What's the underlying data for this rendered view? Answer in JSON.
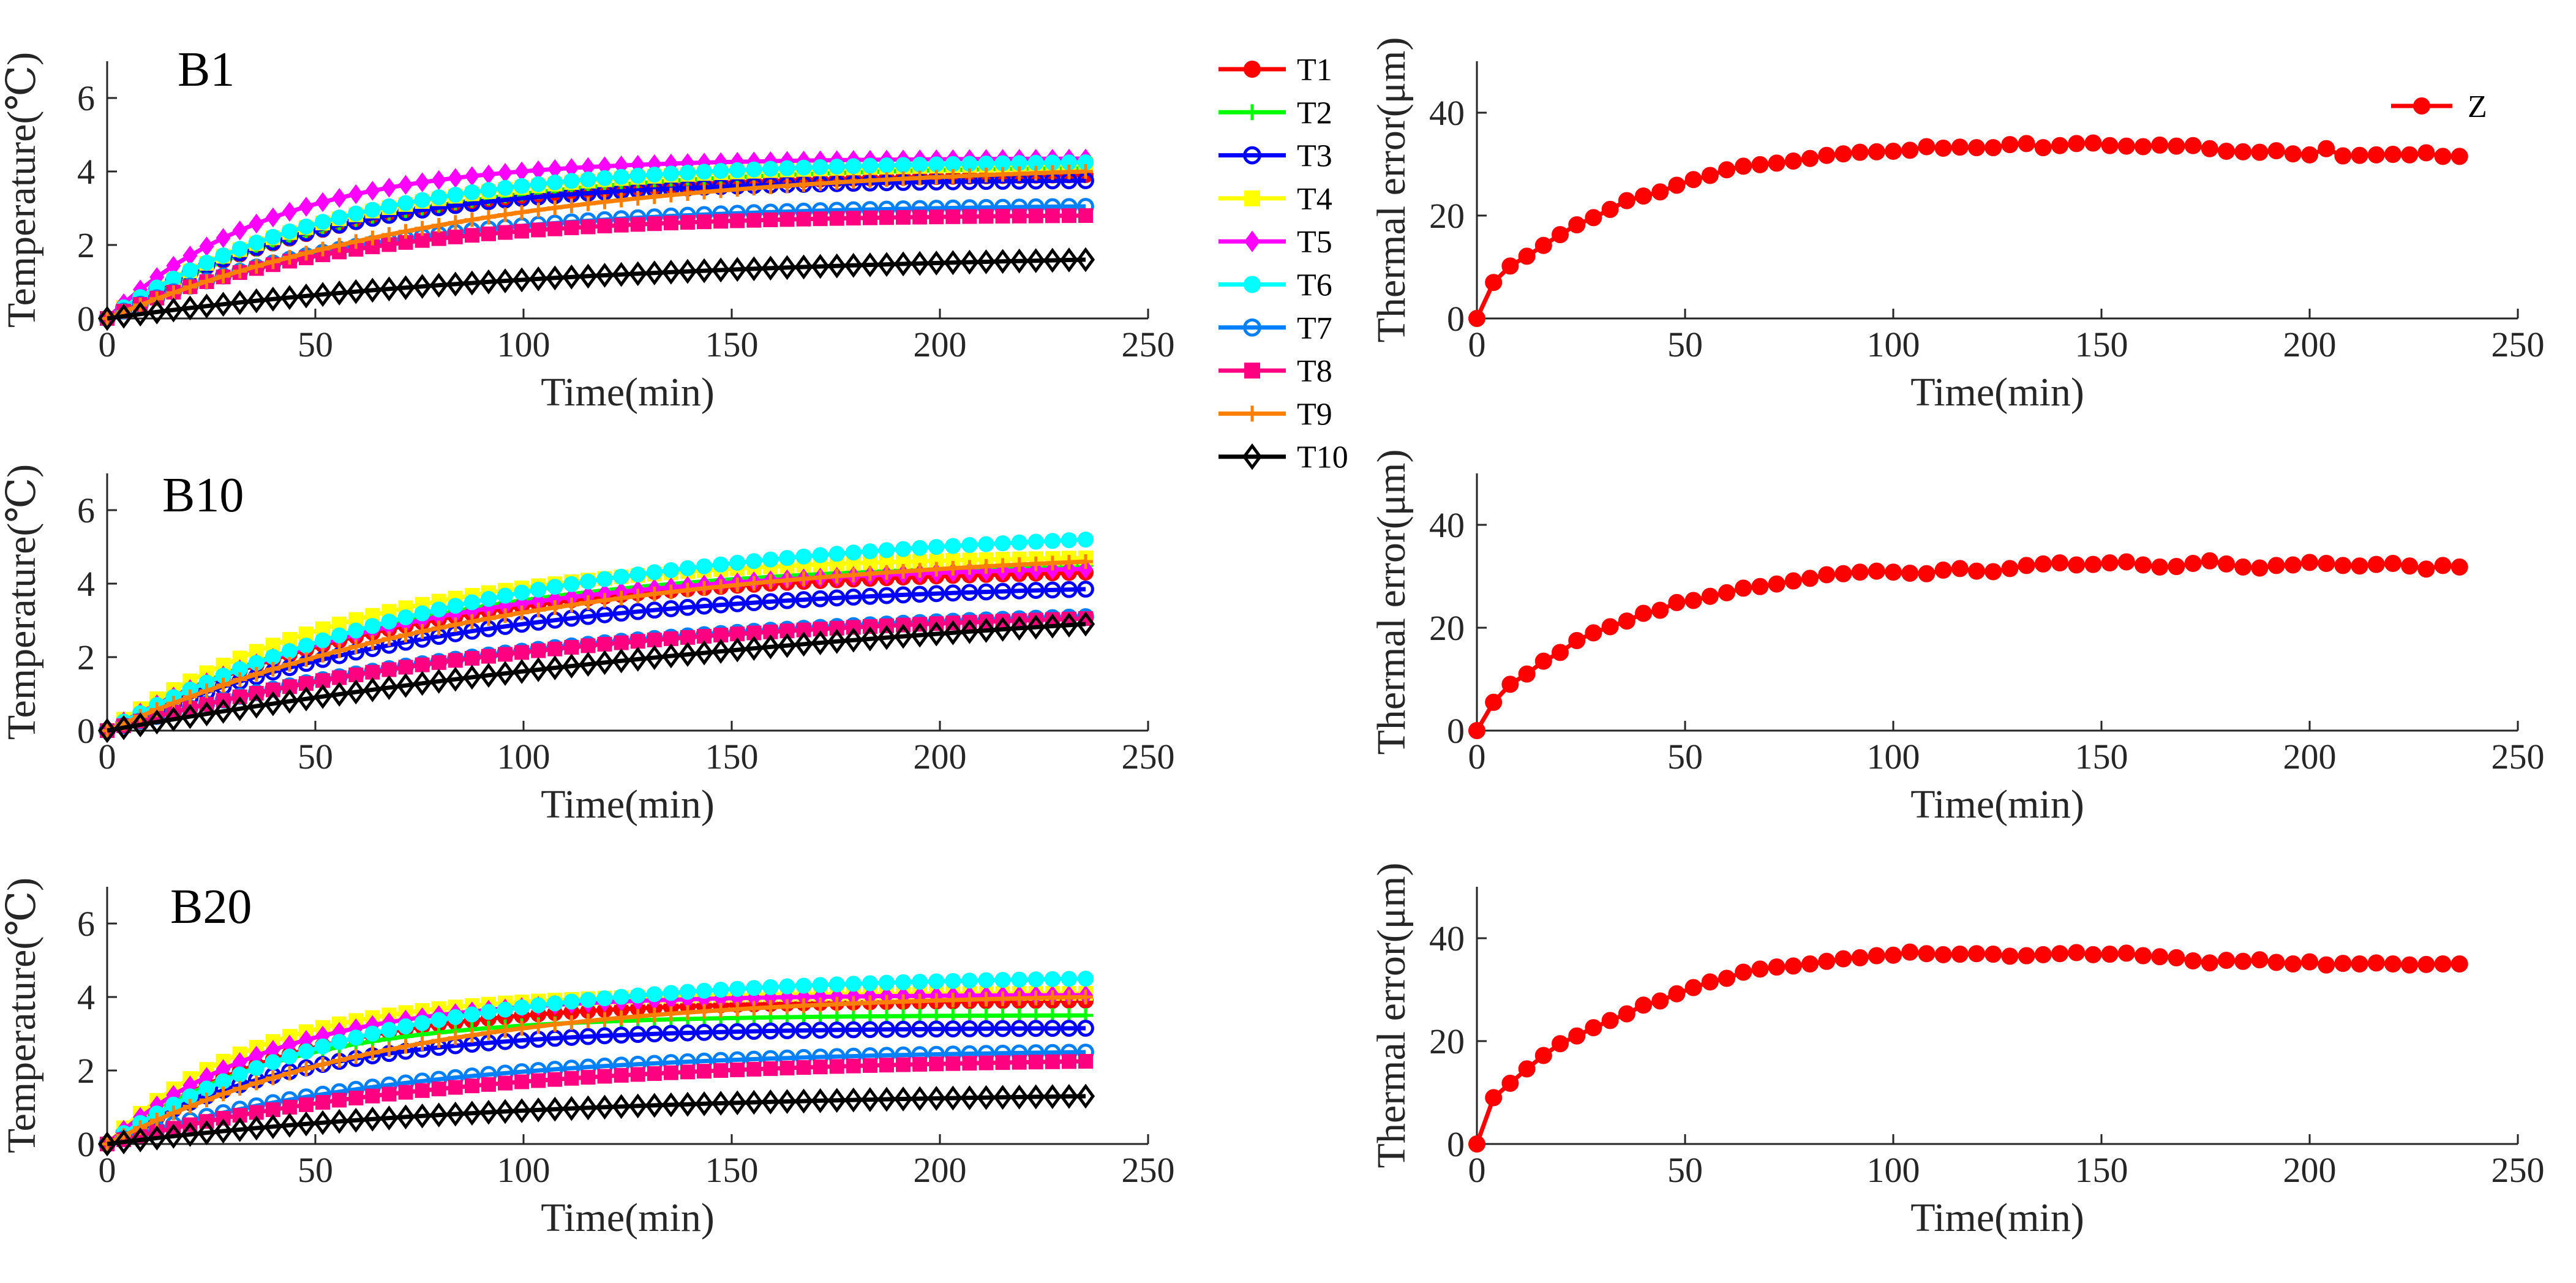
{
  "legend_temperature": {
    "entries": [
      {
        "name": "T1",
        "color": "#ff0000",
        "marker": "circle-filled"
      },
      {
        "name": "T2",
        "color": "#00ff00",
        "marker": "plus"
      },
      {
        "name": "T3",
        "color": "#0000ff",
        "marker": "circle-open"
      },
      {
        "name": "T4",
        "color": "#ffff00",
        "marker": "square-filled"
      },
      {
        "name": "T5",
        "color": "#ff00ff",
        "marker": "diamond-filled"
      },
      {
        "name": "T6",
        "color": "#00ffff",
        "marker": "circle-filled"
      },
      {
        "name": "T7",
        "color": "#0080ff",
        "marker": "circle-open"
      },
      {
        "name": "T8",
        "color": "#ff0080",
        "marker": "square-filled"
      },
      {
        "name": "T9",
        "color": "#ff8000",
        "marker": "plus"
      },
      {
        "name": "T10",
        "color": "#000000",
        "marker": "diamond-open"
      }
    ]
  },
  "legend_error": {
    "entries": [
      {
        "name": "Z",
        "color": "#ff0000",
        "marker": "circle-filled"
      }
    ]
  },
  "chart_data": [
    {
      "id": "B1-temp",
      "type": "line",
      "title": "B1",
      "xlabel": "Time(min)",
      "ylabel": "Temperature(℃)",
      "xlim": [
        0,
        250
      ],
      "ylim": [
        0,
        7
      ],
      "xticks": [
        0,
        50,
        100,
        150,
        200,
        250
      ],
      "yticks": [
        0,
        2,
        4,
        6
      ],
      "x_range": [
        0,
        235
      ],
      "n_points": 60,
      "series": [
        {
          "name": "T1",
          "final": 3.9,
          "tau": 55
        },
        {
          "name": "T2",
          "final": 4.1,
          "tau": 60
        },
        {
          "name": "T3",
          "final": 3.75,
          "tau": 50
        },
        {
          "name": "T4",
          "final": 4.2,
          "tau": 55
        },
        {
          "name": "T5",
          "final": 4.35,
          "tau": 40
        },
        {
          "name": "T6",
          "final": 4.25,
          "tau": 55
        },
        {
          "name": "T7",
          "final": 3.05,
          "tau": 60
        },
        {
          "name": "T8",
          "final": 2.8,
          "tau": 55
        },
        {
          "name": "T9",
          "final": 4.0,
          "tau": 90
        },
        {
          "name": "T10",
          "final": 1.6,
          "tau": 120
        }
      ]
    },
    {
      "id": "B10-temp",
      "type": "line",
      "title": "B10",
      "xlabel": "Time(min)",
      "ylabel": "Temperature(℃)",
      "xlim": [
        0,
        250
      ],
      "ylim": [
        0,
        7
      ],
      "xticks": [
        0,
        50,
        100,
        150,
        200,
        250
      ],
      "yticks": [
        0,
        2,
        4,
        6
      ],
      "x_range": [
        0,
        235
      ],
      "n_points": 60,
      "series": [
        {
          "name": "T1",
          "final": 4.3,
          "tau": 70
        },
        {
          "name": "T2",
          "final": 4.5,
          "tau": 70
        },
        {
          "name": "T3",
          "final": 3.85,
          "tau": 80
        },
        {
          "name": "T4",
          "final": 4.7,
          "tau": 60
        },
        {
          "name": "T5",
          "final": 4.4,
          "tau": 70
        },
        {
          "name": "T6",
          "final": 5.2,
          "tau": 90
        },
        {
          "name": "T7",
          "final": 3.1,
          "tau": 100
        },
        {
          "name": "T8",
          "final": 3.05,
          "tau": 100
        },
        {
          "name": "T9",
          "final": 4.6,
          "tau": 100
        },
        {
          "name": "T10",
          "final": 2.9,
          "tau": 220
        }
      ]
    },
    {
      "id": "B20-temp",
      "type": "line",
      "title": "B20",
      "xlabel": "Time(min)",
      "ylabel": "Temperature(℃)",
      "xlim": [
        0,
        250
      ],
      "ylim": [
        0,
        7
      ],
      "xticks": [
        0,
        50,
        100,
        150,
        200,
        250
      ],
      "yticks": [
        0,
        2,
        4,
        6
      ],
      "x_range": [
        0,
        235
      ],
      "n_points": 60,
      "series": [
        {
          "name": "T1",
          "final": 3.9,
          "tau": 45
        },
        {
          "name": "T2",
          "final": 3.5,
          "tau": 40
        },
        {
          "name": "T3",
          "final": 3.15,
          "tau": 45
        },
        {
          "name": "T4",
          "final": 4.1,
          "tau": 35
        },
        {
          "name": "T5",
          "final": 4.05,
          "tau": 40
        },
        {
          "name": "T6",
          "final": 4.5,
          "tau": 60
        },
        {
          "name": "T7",
          "final": 2.5,
          "tau": 70
        },
        {
          "name": "T8",
          "final": 2.25,
          "tau": 80
        },
        {
          "name": "T9",
          "final": 4.0,
          "tau": 70
        },
        {
          "name": "T10",
          "final": 1.3,
          "tau": 100
        }
      ]
    },
    {
      "id": "B1-error",
      "type": "line",
      "xlabel": "Time(min)",
      "ylabel": "Thermal error(μm)",
      "xlim": [
        0,
        250
      ],
      "ylim": [
        0,
        50
      ],
      "xticks": [
        0,
        50,
        100,
        150,
        200,
        250
      ],
      "yticks": [
        0,
        20,
        40
      ],
      "series": [
        {
          "name": "Z",
          "x": [
            0,
            4,
            8,
            12,
            16,
            20,
            24,
            28,
            32,
            36,
            40,
            44,
            48,
            52,
            56,
            60,
            64,
            68,
            72,
            76,
            80,
            84,
            88,
            92,
            96,
            100,
            104,
            108,
            112,
            116,
            120,
            124,
            128,
            132,
            136,
            140,
            144,
            148,
            152,
            156,
            160,
            164,
            168,
            172,
            176,
            180,
            184,
            188,
            192,
            196,
            200,
            204,
            208,
            212,
            216,
            220,
            224,
            228,
            232,
            236
          ],
          "y": [
            0,
            7.0,
            10.2,
            12.1,
            14.2,
            16.3,
            18.2,
            19.6,
            21.2,
            22.9,
            23.8,
            24.6,
            25.9,
            27.0,
            27.8,
            28.9,
            29.6,
            29.9,
            30.2,
            30.6,
            31.1,
            31.7,
            32.0,
            32.3,
            32.4,
            32.5,
            32.7,
            33.4,
            33.1,
            33.3,
            33.2,
            33.2,
            33.8,
            34.0,
            33.2,
            33.6,
            34.0,
            34.1,
            33.6,
            33.5,
            33.4,
            33.7,
            33.5,
            33.6,
            33.0,
            32.5,
            32.4,
            32.3,
            32.6,
            32.0,
            31.8,
            33.0,
            31.6,
            31.7,
            31.8,
            31.9,
            31.8,
            32.2,
            31.5,
            31.5
          ]
        }
      ]
    },
    {
      "id": "B10-error",
      "type": "line",
      "xlabel": "Time(min)",
      "ylabel": "Thermal error(μm)",
      "xlim": [
        0,
        250
      ],
      "ylim": [
        0,
        50
      ],
      "xticks": [
        0,
        50,
        100,
        150,
        200,
        250
      ],
      "yticks": [
        0,
        20,
        40
      ],
      "series": [
        {
          "name": "Z",
          "x": [
            0,
            4,
            8,
            12,
            16,
            20,
            24,
            28,
            32,
            36,
            40,
            44,
            48,
            52,
            56,
            60,
            64,
            68,
            72,
            76,
            80,
            84,
            88,
            92,
            96,
            100,
            104,
            108,
            112,
            116,
            120,
            124,
            128,
            132,
            136,
            140,
            144,
            148,
            152,
            156,
            160,
            164,
            168,
            172,
            176,
            180,
            184,
            188,
            192,
            196,
            200,
            204,
            208,
            212,
            216,
            220,
            224,
            228,
            232,
            236
          ],
          "y": [
            0,
            5.5,
            9.0,
            11.0,
            13.5,
            15.2,
            17.5,
            19.0,
            20.2,
            21.3,
            22.8,
            23.4,
            24.9,
            25.3,
            26.1,
            26.8,
            27.7,
            28.0,
            28.5,
            29.1,
            29.6,
            30.3,
            30.5,
            30.8,
            31.0,
            30.8,
            30.6,
            30.5,
            31.2,
            31.5,
            31.0,
            30.9,
            31.5,
            32.1,
            32.4,
            32.6,
            32.2,
            32.3,
            32.6,
            32.8,
            32.2,
            31.8,
            31.9,
            32.5,
            33.0,
            32.4,
            31.8,
            31.6,
            32.1,
            32.2,
            32.7,
            32.5,
            32.1,
            32.0,
            32.3,
            32.5,
            32.0,
            31.4,
            32.1,
            31.8
          ]
        }
      ]
    },
    {
      "id": "B20-error",
      "type": "line",
      "xlabel": "Time(min)",
      "ylabel": "Thermal error(μm)",
      "xlim": [
        0,
        250
      ],
      "ylim": [
        0,
        50
      ],
      "xticks": [
        0,
        50,
        100,
        150,
        200,
        250
      ],
      "yticks": [
        0,
        20,
        40
      ],
      "series": [
        {
          "name": "Z",
          "x": [
            0,
            4,
            8,
            12,
            16,
            20,
            24,
            28,
            32,
            36,
            40,
            44,
            48,
            52,
            56,
            60,
            64,
            68,
            72,
            76,
            80,
            84,
            88,
            92,
            96,
            100,
            104,
            108,
            112,
            116,
            120,
            124,
            128,
            132,
            136,
            140,
            144,
            148,
            152,
            156,
            160,
            164,
            168,
            172,
            176,
            180,
            184,
            188,
            192,
            196,
            200,
            204,
            208,
            212,
            216,
            220,
            224,
            228,
            232,
            236
          ],
          "y": [
            0,
            9.0,
            11.8,
            14.6,
            17.2,
            19.5,
            21.0,
            22.6,
            24.0,
            25.3,
            27.0,
            27.8,
            29.2,
            30.4,
            31.5,
            32.2,
            33.4,
            34.0,
            34.4,
            34.6,
            35.0,
            35.5,
            36.0,
            36.2,
            36.6,
            36.7,
            37.3,
            37.0,
            36.8,
            36.9,
            37.0,
            36.9,
            36.5,
            36.6,
            36.8,
            37.0,
            37.2,
            36.8,
            36.9,
            37.1,
            36.6,
            36.4,
            36.2,
            35.6,
            35.2,
            35.7,
            35.5,
            35.8,
            35.3,
            35.0,
            35.4,
            34.8,
            35.1,
            35.0,
            35.2,
            35.0,
            34.8,
            34.9,
            35.0,
            35.0
          ]
        }
      ]
    }
  ]
}
